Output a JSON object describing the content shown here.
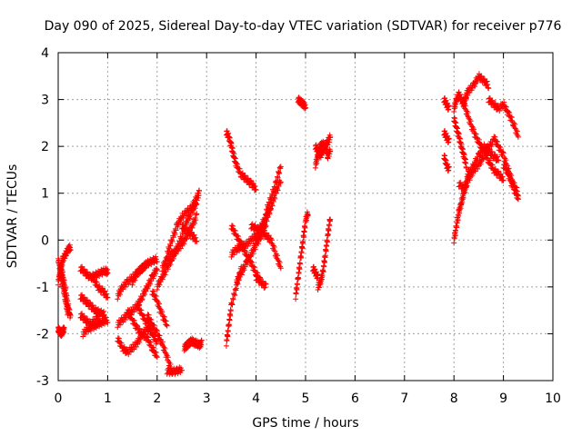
{
  "chart_data": {
    "type": "scatter",
    "title": "Day 090 of 2025, Sidereal Day-to-day VTEC variation (SDTVAR) for receiver p776",
    "xlabel": "GPS time / hours",
    "ylabel": "SDTVAR / TECUs",
    "xlim": [
      0,
      10
    ],
    "ylim": [
      -3,
      4
    ],
    "xticks": [
      0,
      1,
      2,
      3,
      4,
      5,
      6,
      7,
      8,
      9,
      10
    ],
    "yticks": [
      -3,
      -2,
      -1,
      0,
      1,
      2,
      3,
      4
    ],
    "xtick_labels": [
      "0",
      "1",
      "2",
      "3",
      "4",
      "5",
      "6",
      "7",
      "8",
      "9",
      "10"
    ],
    "ytick_labels": [
      "-3",
      "-2",
      "-1",
      "0",
      "1",
      "2",
      "3",
      "4"
    ],
    "grid": true,
    "marker": "plus",
    "color": "#ff0000",
    "segments": [
      {
        "x": [
          0.0,
          0.05,
          0.1,
          0.15,
          0.2,
          0.25
        ],
        "y": [
          -0.9,
          -0.6,
          -0.4,
          -0.3,
          -0.2,
          -0.15
        ]
      },
      {
        "x": [
          0.0,
          0.03,
          0.06,
          0.09,
          0.12
        ],
        "y": [
          -1.9,
          -1.95,
          -2.0,
          -1.95,
          -1.9
        ]
      },
      {
        "x": [
          0.0,
          0.05,
          0.1,
          0.15,
          0.2
        ],
        "y": [
          -0.4,
          -0.7,
          -1.0,
          -1.3,
          -1.6
        ]
      },
      {
        "x": [
          0.05,
          0.1,
          0.15,
          0.2,
          0.25
        ],
        "y": [
          -0.5,
          -0.8,
          -1.1,
          -1.4,
          -1.65
        ]
      },
      {
        "x": [
          0.45,
          0.55,
          0.65,
          0.75,
          0.85,
          0.95,
          1.0
        ],
        "y": [
          -0.6,
          -0.7,
          -0.8,
          -0.75,
          -0.7,
          -0.65,
          -0.7
        ]
      },
      {
        "x": [
          0.45,
          0.55,
          0.65,
          0.75,
          0.85,
          0.95
        ],
        "y": [
          -1.2,
          -1.3,
          -1.4,
          -1.5,
          -1.55,
          -1.6
        ]
      },
      {
        "x": [
          0.45,
          0.55,
          0.65,
          0.75,
          0.85
        ],
        "y": [
          -1.6,
          -1.7,
          -1.8,
          -1.7,
          -1.6
        ]
      },
      {
        "x": [
          0.5,
          0.6,
          0.7,
          0.8,
          0.9,
          1.0
        ],
        "y": [
          -2.0,
          -1.9,
          -1.85,
          -1.8,
          -1.75,
          -1.7
        ]
      },
      {
        "x": [
          0.7,
          0.8,
          0.9,
          1.0
        ],
        "y": [
          -0.8,
          -1.0,
          -1.1,
          -1.2
        ]
      },
      {
        "x": [
          1.2,
          1.3,
          1.4,
          1.5,
          1.6,
          1.7,
          1.8,
          1.9
        ],
        "y": [
          -2.1,
          -2.3,
          -2.4,
          -2.3,
          -2.2,
          -2.0,
          -1.9,
          -1.9
        ]
      },
      {
        "x": [
          1.2,
          1.3,
          1.4,
          1.5,
          1.6,
          1.7,
          1.8,
          1.9,
          2.0
        ],
        "y": [
          -1.8,
          -1.7,
          -1.6,
          -1.5,
          -1.4,
          -1.2,
          -1.0,
          -0.8,
          -0.6
        ]
      },
      {
        "x": [
          1.2,
          1.3,
          1.4,
          1.5,
          1.6,
          1.7,
          1.8
        ],
        "y": [
          -1.2,
          -1.0,
          -0.9,
          -0.8,
          -0.7,
          -0.6,
          -0.5
        ]
      },
      {
        "x": [
          1.4,
          1.5,
          1.6,
          1.7,
          1.8,
          1.9,
          2.0
        ],
        "y": [
          -1.5,
          -1.7,
          -1.9,
          -2.0,
          -2.1,
          -2.3,
          -2.5
        ]
      },
      {
        "x": [
          1.6,
          1.7,
          1.8,
          1.9,
          2.0
        ],
        "y": [
          -1.4,
          -1.6,
          -1.8,
          -2.0,
          -2.2
        ]
      },
      {
        "x": [
          1.8,
          1.9,
          2.0,
          2.1,
          2.2,
          2.3
        ],
        "y": [
          -1.6,
          -1.8,
          -2.0,
          -2.2,
          -2.5,
          -2.8
        ]
      },
      {
        "x": [
          1.9,
          2.0,
          2.1,
          2.2
        ],
        "y": [
          -1.1,
          -1.3,
          -1.6,
          -1.8
        ]
      },
      {
        "x": [
          2.2,
          2.3,
          2.4,
          2.5
        ],
        "y": [
          -2.8,
          -2.8,
          -2.8,
          -2.75
        ]
      },
      {
        "x": [
          2.0,
          2.1,
          2.2,
          2.3,
          2.4,
          2.5,
          2.6,
          2.7,
          2.8
        ],
        "y": [
          -1.0,
          -0.8,
          -0.6,
          -0.4,
          -0.2,
          0.1,
          0.4,
          0.6,
          0.8
        ]
      },
      {
        "x": [
          2.1,
          2.2,
          2.3,
          2.4,
          2.5,
          2.6,
          2.7,
          2.8
        ],
        "y": [
          -0.6,
          -0.4,
          -0.3,
          -0.2,
          -0.1,
          0.1,
          0.3,
          0.5
        ]
      },
      {
        "x": [
          2.2,
          2.3,
          2.4,
          2.5,
          2.6,
          2.7,
          2.8,
          2.85
        ],
        "y": [
          -0.3,
          0.0,
          0.3,
          0.5,
          0.6,
          0.7,
          0.9,
          1.0
        ]
      },
      {
        "x": [
          2.5,
          2.6,
          2.7,
          2.8
        ],
        "y": [
          0.3,
          0.2,
          0.1,
          0.0
        ]
      },
      {
        "x": [
          2.55,
          2.6,
          2.65,
          2.7,
          2.75,
          2.8,
          2.85,
          2.9
        ],
        "y": [
          -2.3,
          -2.25,
          -2.2,
          -2.15,
          -2.2,
          -2.2,
          -2.25,
          -2.2
        ]
      },
      {
        "x": [
          1.5,
          1.6,
          1.7,
          1.8,
          1.9,
          2.0
        ],
        "y": [
          -0.9,
          -0.7,
          -0.6,
          -0.5,
          -0.45,
          -0.4
        ]
      },
      {
        "x": [
          3.4,
          3.45,
          3.5,
          3.55,
          3.6,
          3.7,
          3.8,
          3.9,
          4.0
        ],
        "y": [
          2.3,
          2.2,
          2.0,
          1.8,
          1.6,
          1.4,
          1.3,
          1.2,
          1.1
        ]
      },
      {
        "x": [
          3.4,
          3.45,
          3.5,
          3.6,
          3.7
        ],
        "y": [
          -2.2,
          -1.8,
          -1.4,
          -1.0,
          -0.6
        ]
      },
      {
        "x": [
          3.5,
          3.6,
          3.7,
          3.8,
          3.9,
          4.0,
          4.1,
          4.2,
          4.3
        ],
        "y": [
          -0.3,
          -0.2,
          -0.15,
          -0.1,
          0.0,
          0.1,
          0.3,
          0.5,
          0.7
        ]
      },
      {
        "x": [
          3.5,
          3.6,
          3.7,
          3.8,
          3.9,
          4.0,
          4.1
        ],
        "y": [
          0.3,
          0.1,
          -0.1,
          -0.3,
          -0.5,
          -0.7,
          -0.9
        ]
      },
      {
        "x": [
          3.6,
          3.7,
          3.8,
          3.9,
          4.0,
          4.1,
          4.2
        ],
        "y": [
          -0.9,
          -0.7,
          -0.5,
          -0.3,
          -0.1,
          0.1,
          0.3
        ]
      },
      {
        "x": [
          4.0,
          4.1,
          4.2,
          4.3,
          4.4,
          4.5
        ],
        "y": [
          0.0,
          0.2,
          0.4,
          0.7,
          1.0,
          1.3
        ]
      },
      {
        "x": [
          4.2,
          4.3,
          4.4,
          4.5
        ],
        "y": [
          0.6,
          0.9,
          1.2,
          1.6
        ]
      },
      {
        "x": [
          3.9,
          4.0,
          4.1,
          4.2,
          4.3,
          4.4,
          4.5
        ],
        "y": [
          0.3,
          0.25,
          0.2,
          0.1,
          0.0,
          -0.3,
          -0.6
        ]
      },
      {
        "x": [
          4.0,
          4.1,
          4.2
        ],
        "y": [
          -0.8,
          -0.9,
          -1.0
        ]
      },
      {
        "x": [
          4.8,
          4.85,
          4.9,
          4.95,
          5.0,
          5.05
        ],
        "y": [
          -1.2,
          -0.8,
          -0.4,
          0.0,
          0.4,
          0.6
        ]
      },
      {
        "x": [
          4.85,
          4.9,
          4.95,
          5.0
        ],
        "y": [
          3.0,
          2.95,
          2.9,
          2.85
        ]
      },
      {
        "x": [
          5.2,
          5.25,
          5.3,
          5.35,
          5.4,
          5.45,
          5.5
        ],
        "y": [
          1.6,
          1.8,
          2.0,
          2.05,
          2.0,
          2.1,
          2.2
        ]
      },
      {
        "x": [
          5.2,
          5.25,
          5.3,
          5.35,
          5.4,
          5.45,
          5.5
        ],
        "y": [
          2.0,
          1.9,
          1.8,
          1.9,
          2.0,
          1.8,
          1.9
        ]
      },
      {
        "x": [
          5.25,
          5.3,
          5.35,
          5.4,
          5.45,
          5.5
        ],
        "y": [
          -1.0,
          -0.9,
          -0.7,
          -0.3,
          0.1,
          0.5
        ]
      },
      {
        "x": [
          5.15,
          5.2,
          5.25
        ],
        "y": [
          -0.6,
          -0.7,
          -0.8
        ]
      },
      {
        "x": [
          7.8,
          7.85,
          7.9
        ],
        "y": [
          3.0,
          2.9,
          2.8
        ]
      },
      {
        "x": [
          7.8,
          7.85,
          7.9
        ],
        "y": [
          2.3,
          2.2,
          2.1
        ]
      },
      {
        "x": [
          7.8,
          7.85,
          7.9
        ],
        "y": [
          1.8,
          1.6,
          1.5
        ]
      },
      {
        "x": [
          8.0,
          8.05,
          8.1,
          8.15,
          8.2,
          8.25,
          8.3,
          8.4,
          8.5,
          8.6,
          8.7
        ],
        "y": [
          2.8,
          3.0,
          3.1,
          3.0,
          2.9,
          3.1,
          3.2,
          3.3,
          3.5,
          3.4,
          3.3
        ]
      },
      {
        "x": [
          8.0,
          8.05,
          8.1,
          8.15,
          8.2,
          8.25
        ],
        "y": [
          2.6,
          2.4,
          2.2,
          2.0,
          1.8,
          1.6
        ]
      },
      {
        "x": [
          8.0,
          8.05,
          8.1,
          8.15,
          8.2,
          8.25,
          8.3
        ],
        "y": [
          0.0,
          0.3,
          0.6,
          0.8,
          1.0,
          1.2,
          1.5
        ]
      },
      {
        "x": [
          8.1,
          8.2,
          8.3,
          8.4,
          8.5,
          8.6,
          8.7,
          8.8
        ],
        "y": [
          1.2,
          1.1,
          1.3,
          1.5,
          1.6,
          1.8,
          2.0,
          2.1
        ]
      },
      {
        "x": [
          8.3,
          8.4,
          8.5,
          8.6,
          8.7,
          8.8,
          8.9
        ],
        "y": [
          1.4,
          1.6,
          1.8,
          2.0,
          1.9,
          1.8,
          1.7
        ]
      },
      {
        "x": [
          8.2,
          8.3,
          8.4,
          8.5,
          8.6,
          8.7,
          8.8,
          8.9,
          9.0
        ],
        "y": [
          2.9,
          2.6,
          2.3,
          2.1,
          1.9,
          1.7,
          1.5,
          1.4,
          1.3
        ]
      },
      {
        "x": [
          8.7,
          8.8,
          8.9,
          9.0,
          9.1,
          9.2,
          9.3
        ],
        "y": [
          3.0,
          2.9,
          2.8,
          2.9,
          2.7,
          2.5,
          2.2
        ]
      },
      {
        "x": [
          8.8,
          8.9,
          9.0,
          9.1,
          9.2,
          9.3
        ],
        "y": [
          2.2,
          2.0,
          1.8,
          1.5,
          1.2,
          1.0
        ]
      },
      {
        "x": [
          9.0,
          9.1,
          9.2,
          9.3
        ],
        "y": [
          1.6,
          1.4,
          1.1,
          0.9
        ]
      }
    ]
  }
}
